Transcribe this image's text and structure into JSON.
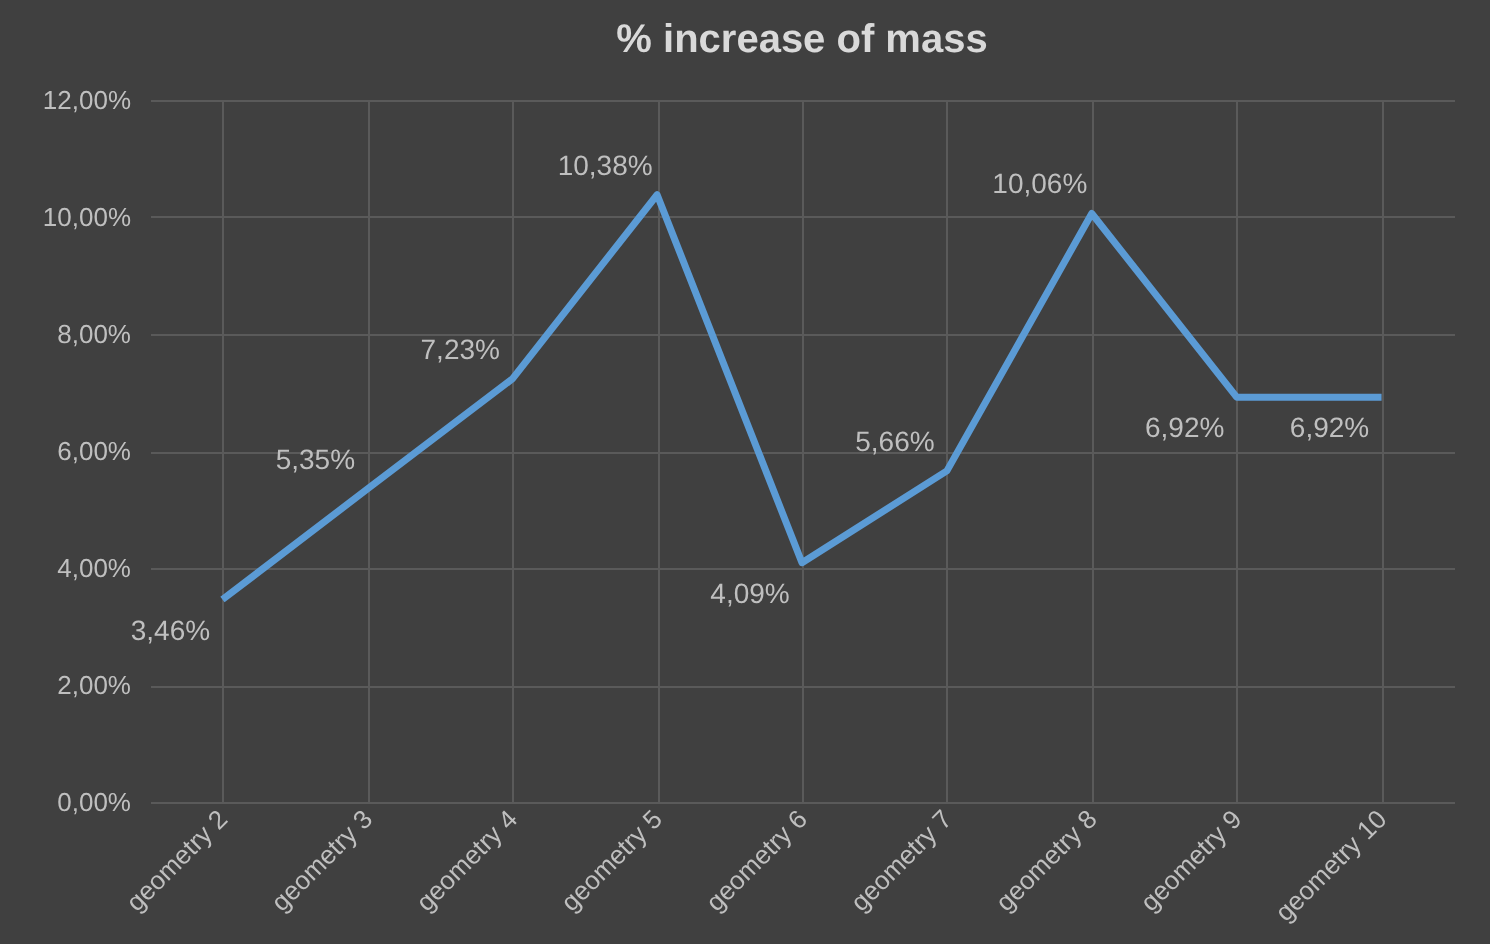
{
  "chart_data": {
    "type": "line",
    "title": "% increase of mass",
    "categories": [
      "geometry 2",
      "geometry 3",
      "geometry 4",
      "geometry 5",
      "geometry 6",
      "geometry 7",
      "geometry 8",
      "geometry 9",
      "geometry 10"
    ],
    "series": [
      {
        "color": "#5b9bd5",
        "values": [
          3.46,
          5.35,
          7.23,
          10.38,
          4.09,
          5.66,
          10.06,
          6.92,
          6.92
        ],
        "value_labels": [
          "3,46%",
          "5,35%",
          "7,23%",
          "10,38%",
          "4,09%",
          "5,66%",
          "10,06%",
          "6,92%",
          "6,92%"
        ]
      }
    ],
    "ylim": [
      0,
      12
    ],
    "yticks": [
      {
        "value": 0,
        "label": "0,00%"
      },
      {
        "value": 2,
        "label": "2,00%"
      },
      {
        "value": 4,
        "label": "4,00%"
      },
      {
        "value": 6,
        "label": "6,00%"
      },
      {
        "value": 8,
        "label": "8,00%"
      },
      {
        "value": 10,
        "label": "10,00%"
      },
      {
        "value": 12,
        "label": "12,00%"
      }
    ],
    "grid": true,
    "marker": "none",
    "line_style": "solid"
  }
}
